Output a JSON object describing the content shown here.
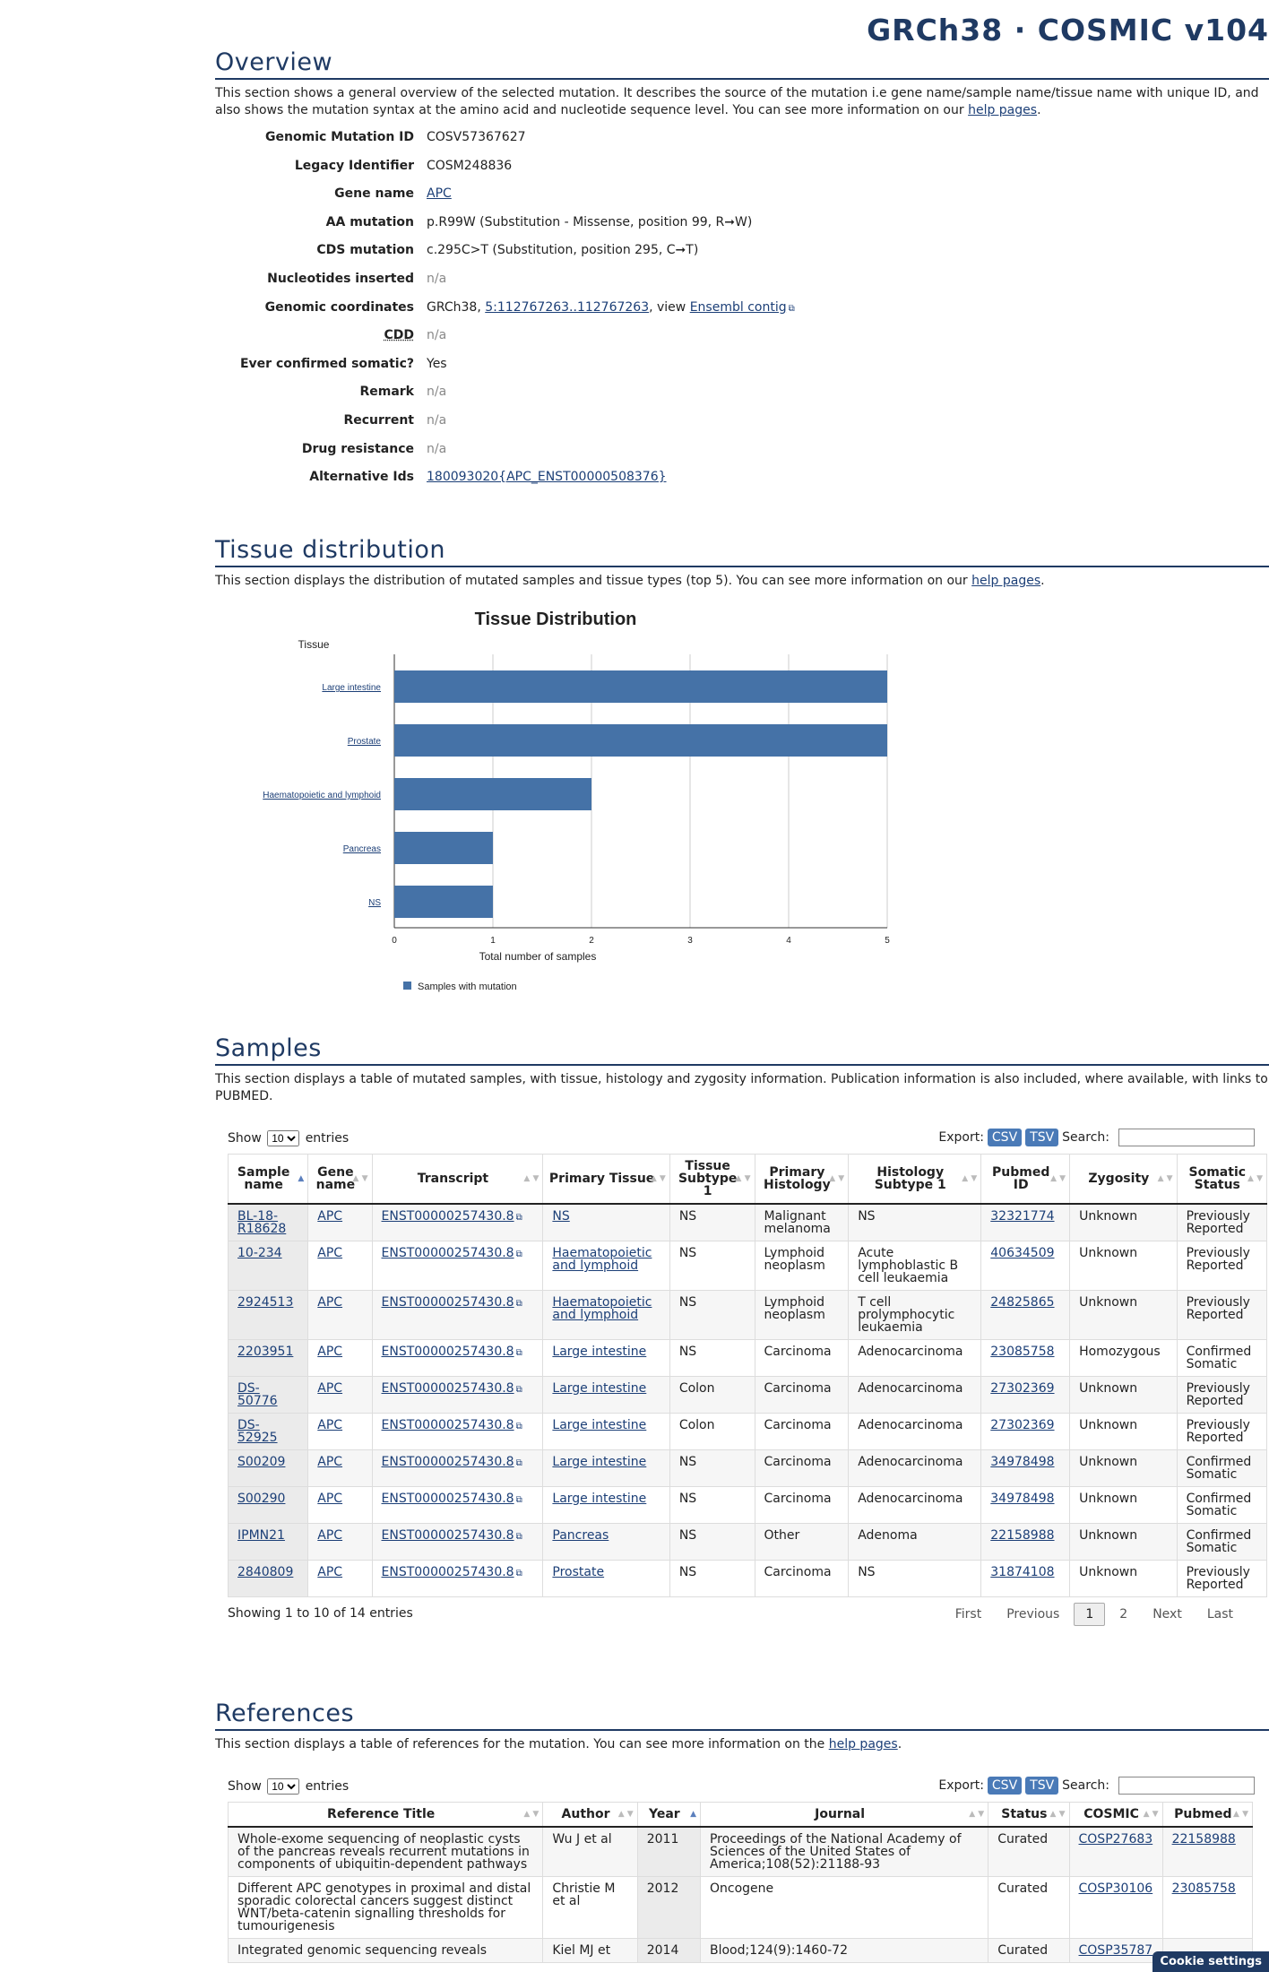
{
  "build": "GRCh38 · COSMIC v104",
  "overview": {
    "title": "Overview",
    "intro_text": "This section shows a general overview of the selected mutation. It describes the source of the mutation i.e gene name/sample name/tissue name with unique ID, and also shows the mutation syntax at the amino acid and nucleotide sequence level. You can see more information on our",
    "help_link": "help pages",
    "fields": [
      {
        "label": "Genomic Mutation ID",
        "value": "COSV57367627"
      },
      {
        "label": "Legacy Identifier",
        "value": "COSM248836"
      },
      {
        "label": "Gene name",
        "link": "APC"
      },
      {
        "label": "AA mutation",
        "value": "p.R99W (Substitution - Missense, position 99, R➞W)"
      },
      {
        "label": "CDS mutation",
        "value": "c.295C>T (Substitution, position 295, C➞T)"
      },
      {
        "label": "Nucleotides inserted",
        "na": "n/a"
      },
      {
        "label": "Genomic coordinates",
        "value": "GRCh38, ",
        "link": "5:112767263..112767263",
        "value2": ", view ",
        "link2": "Ensembl contig"
      },
      {
        "label": "CDD",
        "na": "n/a"
      },
      {
        "label": "Ever confirmed somatic?",
        "value": "Yes"
      },
      {
        "label": "Remark",
        "na": "n/a"
      },
      {
        "label": "Recurrent",
        "na": "n/a"
      },
      {
        "label": "Drug resistance",
        "na": "n/a"
      },
      {
        "label": "Alternative Ids",
        "link": "180093020{APC_ENST00000508376}"
      }
    ]
  },
  "tissue": {
    "title": "Tissue distribution",
    "intro_text": "This section displays the distribution of mutated samples and tissue types (top 5). You can see more information on our",
    "help_link": "help pages"
  },
  "chart_data": {
    "type": "bar",
    "orientation": "horizontal",
    "title": "Tissue Distribution",
    "ylabel": "Tissue",
    "xlabel": "Total number of samples",
    "categories": [
      "Large intestine",
      "Prostate",
      "Haematopoietic and lymphoid",
      "Pancreas",
      "NS"
    ],
    "series": [
      {
        "name": "Samples with mutation",
        "values": [
          5,
          5,
          2,
          1,
          1
        ],
        "color": "#4572a7"
      }
    ],
    "xlim": [
      0,
      5
    ],
    "xticks": [
      0,
      1,
      2,
      3,
      4,
      5
    ],
    "grid": true,
    "legend": "bottom"
  },
  "samples": {
    "title": "Samples",
    "intro_text": "This section displays a table of mutated samples, with tissue, histology and zygosity information. Publication information is also included, where available, with links to PUBMED.",
    "show_label": "Show",
    "show_value": "10",
    "entries_label": "entries",
    "export_label": "Export:",
    "csv": "CSV",
    "tsv": "TSV",
    "search_label": "Search:",
    "columns": [
      "Sample name",
      "Gene name",
      "Transcript",
      "Primary Tissue",
      "Tissue Subtype 1",
      "Primary Histology",
      "Histology Subtype 1",
      "Pubmed ID",
      "Zygosity",
      "Somatic Status"
    ],
    "rows": [
      [
        "BL-18-R18628",
        "APC",
        "ENST00000257430.8",
        "NS",
        "NS",
        "Malignant melanoma",
        "NS",
        "32321774",
        "Unknown",
        "Previously Reported"
      ],
      [
        "10-234",
        "APC",
        "ENST00000257430.8",
        "Haematopoietic and lymphoid",
        "NS",
        "Lymphoid neoplasm",
        "Acute lymphoblastic B cell leukaemia",
        "40634509",
        "Unknown",
        "Previously Reported"
      ],
      [
        "2924513",
        "APC",
        "ENST00000257430.8",
        "Haematopoietic and lymphoid",
        "NS",
        "Lymphoid neoplasm",
        "T cell prolymphocytic leukaemia",
        "24825865",
        "Unknown",
        "Previously Reported"
      ],
      [
        "2203951",
        "APC",
        "ENST00000257430.8",
        "Large intestine",
        "NS",
        "Carcinoma",
        "Adenocarcinoma",
        "23085758",
        "Homozygous",
        "Confirmed Somatic"
      ],
      [
        "DS-50776",
        "APC",
        "ENST00000257430.8",
        "Large intestine",
        "Colon",
        "Carcinoma",
        "Adenocarcinoma",
        "27302369",
        "Unknown",
        "Previously Reported"
      ],
      [
        "DS-52925",
        "APC",
        "ENST00000257430.8",
        "Large intestine",
        "Colon",
        "Carcinoma",
        "Adenocarcinoma",
        "27302369",
        "Unknown",
        "Previously Reported"
      ],
      [
        "S00209",
        "APC",
        "ENST00000257430.8",
        "Large intestine",
        "NS",
        "Carcinoma",
        "Adenocarcinoma",
        "34978498",
        "Unknown",
        "Confirmed Somatic"
      ],
      [
        "S00290",
        "APC",
        "ENST00000257430.8",
        "Large intestine",
        "NS",
        "Carcinoma",
        "Adenocarcinoma",
        "34978498",
        "Unknown",
        "Confirmed Somatic"
      ],
      [
        "IPMN21",
        "APC",
        "ENST00000257430.8",
        "Pancreas",
        "NS",
        "Other",
        "Adenoma",
        "22158988",
        "Unknown",
        "Confirmed Somatic"
      ],
      [
        "2840809",
        "APC",
        "ENST00000257430.8",
        "Prostate",
        "NS",
        "Carcinoma",
        "NS",
        "31874108",
        "Unknown",
        "Previously Reported"
      ]
    ],
    "info": "Showing 1 to 10 of 14 entries",
    "pager": {
      "first": "First",
      "previous": "Previous",
      "pages": [
        "1",
        "2"
      ],
      "next": "Next",
      "last": "Last"
    }
  },
  "references": {
    "title": "References",
    "intro_text": "This section displays a table of references for the mutation. You can see more information on the",
    "help_link": "help pages",
    "show_label": "Show",
    "show_value": "10",
    "entries_label": "entries",
    "export_label": "Export:",
    "csv": "CSV",
    "tsv": "TSV",
    "search_label": "Search:",
    "columns": [
      "Reference Title",
      "Author",
      "Year",
      "Journal",
      "Status",
      "COSMIC",
      "Pubmed"
    ],
    "rows": [
      [
        "Whole-exome sequencing of neoplastic cysts of the pancreas reveals recurrent mutations in components of ubiquitin-dependent pathways",
        "Wu J et al",
        "2011",
        "Proceedings of the National Academy of Sciences of the United States of America;108(52):21188-93",
        "Curated",
        "COSP27683",
        "22158988"
      ],
      [
        "Different APC genotypes in proximal and distal sporadic colorectal cancers suggest distinct WNT/beta-catenin signalling thresholds for tumourigenesis",
        "Christie M et al",
        "2012",
        "Oncogene",
        "Curated",
        "COSP30106",
        "23085758"
      ],
      [
        "Integrated genomic sequencing reveals",
        "Kiel MJ et",
        "2014",
        "Blood;124(9):1460-72",
        "Curated",
        "COSP35787",
        ""
      ]
    ]
  },
  "cookie_label": "Cookie settings"
}
